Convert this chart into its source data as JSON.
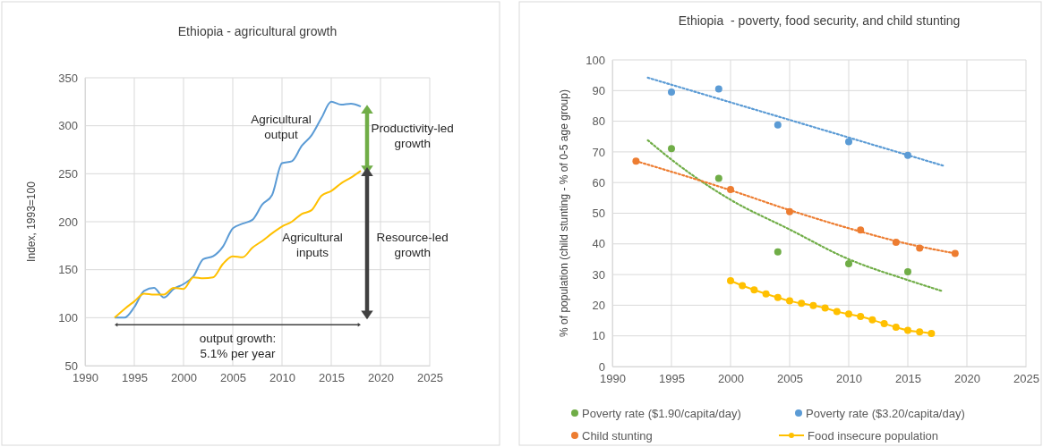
{
  "chart_data": [
    {
      "type": "line",
      "title": "Ethiopia - agricultural growth",
      "ylabel": "Index, 1993=100",
      "xlim": [
        1990,
        2025
      ],
      "xticks": [
        1990,
        1995,
        2000,
        2005,
        2010,
        2015,
        2020,
        2025
      ],
      "ylim": [
        50,
        350
      ],
      "yticks": [
        50,
        100,
        150,
        200,
        250,
        300,
        350
      ],
      "grid": true,
      "legend": false,
      "x": [
        1993,
        1994,
        1995,
        1996,
        1997,
        1998,
        1999,
        2000,
        2001,
        2002,
        2003,
        2004,
        2005,
        2006,
        2007,
        2008,
        2009,
        2010,
        2011,
        2012,
        2013,
        2014,
        2015,
        2016,
        2017,
        2018
      ],
      "series": [
        {
          "color": "#5b9bd5",
          "values": [
            100,
            100,
            111,
            128,
            131,
            121,
            130,
            135,
            143,
            161,
            164,
            174,
            193,
            198,
            202,
            218,
            228,
            261,
            263,
            279,
            290,
            308,
            325,
            322,
            323,
            320
          ]
        },
        {
          "color": "#ffc000",
          "values": [
            100,
            109,
            117,
            125,
            124,
            124,
            131,
            130,
            142,
            141,
            142,
            156,
            164,
            163,
            173,
            180,
            188,
            195,
            200,
            208,
            212,
            227,
            232,
            240,
            246,
            253
          ]
        }
      ],
      "annotations": [
        "Agricultural output",
        "Agricultural inputs",
        "Productivity-led growth",
        "Resource-led growth",
        "output growth: 5.1% per year"
      ]
    },
    {
      "type": "scatter",
      "title": "Ethiopia  - poverty, food security, and child stunting",
      "ylabel": "% of population (child stunting - % of 0-5 age group)",
      "xlim": [
        1990,
        2025
      ],
      "xticks": [
        1990,
        1995,
        2000,
        2005,
        2010,
        2015,
        2020,
        2025
      ],
      "ylim": [
        0,
        100
      ],
      "yticks": [
        0,
        10,
        20,
        30,
        40,
        50,
        60,
        70,
        80,
        90,
        100
      ],
      "grid": true,
      "legend": "bottom",
      "marker": "circle",
      "series": [
        {
          "name": "Poverty rate ($1.90/capita/day)",
          "type": "scatter",
          "color": "#70ad47",
          "x": [
            1995,
            1999,
            2004,
            2010,
            2015
          ],
          "values": [
            71.1,
            61.4,
            37.4,
            33.5,
            30.9
          ]
        },
        {
          "name": "Poverty rate ($3.20/capita/day)",
          "type": "scatter",
          "color": "#5b9bd5",
          "x": [
            1995,
            1999,
            2004,
            2010,
            2015
          ],
          "values": [
            89.5,
            90.5,
            78.8,
            73.3,
            68.9
          ]
        },
        {
          "name": "Child stunting",
          "type": "scatter",
          "color": "#ed7d31",
          "x": [
            1992,
            2000,
            2005,
            2011,
            2014,
            2016,
            2019
          ],
          "values": [
            67.0,
            57.7,
            50.5,
            44.5,
            40.5,
            38.6,
            36.9
          ]
        },
        {
          "name": "Food insecure population",
          "type": "line",
          "color": "#ffc000",
          "x": [
            2000,
            2001,
            2002,
            2003,
            2004,
            2005,
            2006,
            2007,
            2008,
            2009,
            2010,
            2011,
            2012,
            2013,
            2014,
            2015,
            2016,
            2017
          ],
          "values": [
            28.0,
            26.4,
            25.0,
            23.7,
            22.5,
            21.4,
            20.6,
            19.9,
            19.1,
            17.9,
            17.1,
            16.3,
            15.2,
            14.0,
            12.8,
            11.8,
            11.3,
            10.8
          ]
        },
        {
          "type": "line",
          "color": "#5b9bd5",
          "line_style": "dotted",
          "marker": "none",
          "x": [
            1993,
            2018
          ],
          "values": [
            94.2,
            65.5
          ]
        },
        {
          "type": "line",
          "color": "#70ad47",
          "line_style": "dotted",
          "marker": "none",
          "x": [
            1993,
            1995,
            2000,
            2005,
            2010,
            2015,
            2018
          ],
          "values": [
            73.8,
            67.5,
            54.4,
            44.7,
            35.0,
            28.2,
            24.5
          ]
        },
        {
          "type": "line",
          "color": "#ed7d31",
          "line_style": "dotted",
          "marker": "none",
          "x": [
            1992,
            2000,
            2005,
            2010,
            2015,
            2019
          ],
          "values": [
            67.0,
            57.5,
            51.0,
            45.1,
            40.0,
            36.9
          ]
        }
      ]
    }
  ]
}
